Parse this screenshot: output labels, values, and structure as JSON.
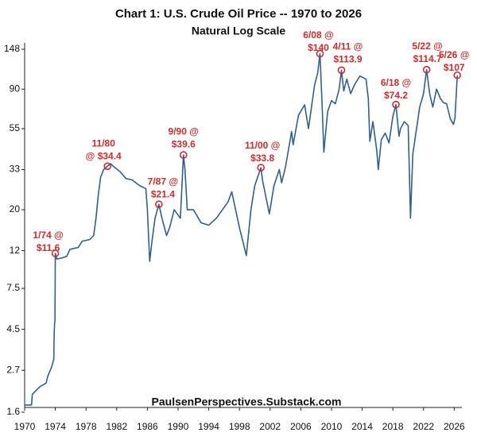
{
  "chart_data": {
    "type": "line",
    "title": "Chart 1: U.S. Crude Oil Price -- 1970 to 2026",
    "subtitle": "Natural Log Scale",
    "source": "PaulsenPerspectives.Substack.com",
    "log_scale": true,
    "grid": false,
    "xlim": [
      1970,
      2027
    ],
    "xticks": [
      1970,
      1974,
      1978,
      1982,
      1986,
      1990,
      1994,
      1998,
      2002,
      2006,
      2010,
      2014,
      2018,
      2022,
      2026
    ],
    "ylim": [
      1.6,
      148
    ],
    "yticks": [
      1.6,
      2.7,
      4.5,
      7.5,
      12,
      20,
      33,
      55,
      90,
      148
    ],
    "x": [
      1970,
      1970.9,
      1971,
      1971.5,
      1972,
      1972.8,
      1973,
      1973.5,
      1973.8,
      1973.85,
      1973.9,
      1973.95,
      1974.0,
      1974.2,
      1975,
      1975.5,
      1975.9,
      1977,
      1977.5,
      1978.5,
      1979,
      1979.3,
      1979.6,
      1979.9,
      1980.3,
      1980.8,
      1981.2,
      1981.7,
      1982.5,
      1983.2,
      1984,
      1985,
      1985.8,
      1986.0,
      1986.3,
      1986.6,
      1987,
      1987.5,
      1987.9,
      1988.5,
      1988.9,
      1989.5,
      1990.3,
      1990.7,
      1990.9,
      1991.2,
      1992,
      1993,
      1994,
      1995,
      1996.5,
      1997,
      1997.5,
      1998,
      1998.9,
      1999.5,
      2000,
      2000.8,
      2001,
      2001.9,
      2002.5,
      2003.2,
      2003.5,
      2004,
      2004.8,
      2005,
      2005.7,
      2006.5,
      2007,
      2007.8,
      2008.2,
      2008.5,
      2008.8,
      2009.0,
      2009.5,
      2010,
      2010.5,
      2011.0,
      2011.3,
      2011.6,
      2012.0,
      2012.5,
      2013,
      2013.7,
      2014.5,
      2014.8,
      2015.0,
      2015.4,
      2015.9,
      2016.1,
      2016.5,
      2017,
      2017.5,
      2018,
      2018.4,
      2018.8,
      2019,
      2019.5,
      2020,
      2020.3,
      2020.6,
      2021,
      2021.5,
      2022,
      2022.4,
      2022.8,
      2023.2,
      2023.7,
      2024.2,
      2024.6,
      2025,
      2025.5,
      2025.9,
      2026.1,
      2026.4
    ],
    "series": [
      {
        "name": "U.S. Crude Oil Price",
        "color": "#2e5f95",
        "values": [
          1.75,
          1.75,
          2.0,
          2.1,
          2.2,
          2.3,
          2.5,
          2.8,
          3.1,
          4.3,
          4.8,
          5.0,
          11.6,
          10.8,
          11.0,
          11.2,
          12.2,
          12.5,
          13.5,
          13.8,
          14.5,
          18,
          24,
          30,
          33,
          34.4,
          35.5,
          34,
          32,
          29.5,
          29,
          27,
          26,
          20,
          10.5,
          13.5,
          18,
          21.4,
          18,
          14.5,
          16,
          20,
          18,
          39.6,
          33,
          20,
          20,
          17,
          16.5,
          18,
          22,
          25,
          20,
          16,
          11.3,
          20,
          27,
          33.8,
          29,
          19,
          27,
          33,
          28,
          34,
          53,
          45,
          65,
          74,
          55,
          95,
          110,
          140,
          70,
          41,
          68,
          78,
          75,
          90,
          113.9,
          88,
          102,
          85,
          95,
          106,
          102,
          80,
          47,
          60,
          42,
          33,
          48,
          52,
          46,
          64,
          74.2,
          50,
          55,
          60,
          57,
          18,
          40,
          52,
          72,
          85,
          114.7,
          85,
          72,
          90,
          80,
          76,
          75,
          62,
          58,
          63,
          107
        ]
      }
    ],
    "annotations": [
      {
        "text": [
          "1/74 @",
          "$11.6"
        ],
        "x": 1974.0,
        "y": 11.6
      },
      {
        "text": [
          "11/80",
          "@ $34.4"
        ],
        "x": 1980.8,
        "y": 34.4
      },
      {
        "text": [
          "7/87 @",
          "$21.4"
        ],
        "x": 1987.5,
        "y": 21.4
      },
      {
        "text": [
          "9/90 @",
          "$39.6"
        ],
        "x": 1990.7,
        "y": 39.6
      },
      {
        "text": [
          "11/00 @",
          "$33.8"
        ],
        "x": 2000.8,
        "y": 33.8
      },
      {
        "text": [
          "6/08 @",
          "$140"
        ],
        "x": 2008.5,
        "y": 140
      },
      {
        "text": [
          "4/11 @",
          "$113.9"
        ],
        "x": 2011.3,
        "y": 113.9
      },
      {
        "text": [
          "6/18 @",
          "$74.2"
        ],
        "x": 2018.4,
        "y": 74.2
      },
      {
        "text": [
          "5/22 @",
          "$114.7"
        ],
        "x": 2022.4,
        "y": 114.7
      },
      {
        "text": [
          "5/26 @",
          "$107"
        ],
        "x": 2026.4,
        "y": 107
      }
    ]
  }
}
